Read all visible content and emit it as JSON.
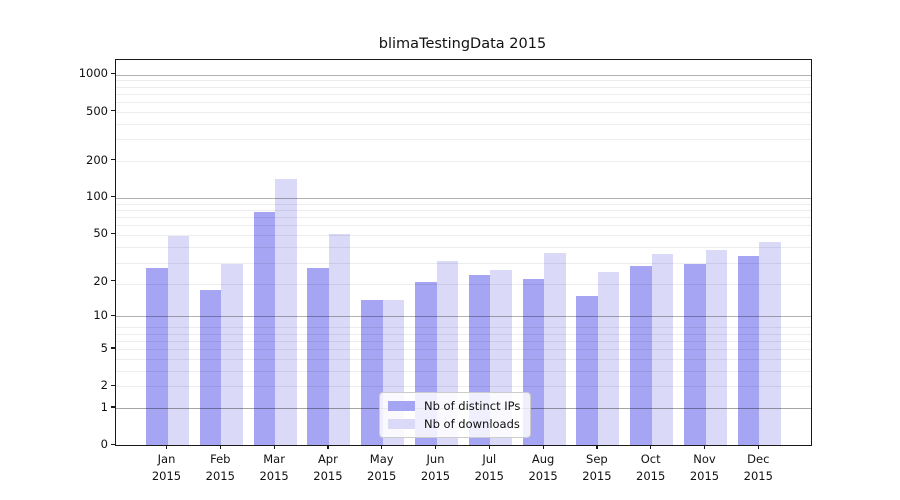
{
  "chart_data": {
    "type": "bar",
    "title": "blimaTestingData 2015",
    "categories": [
      "Jan 2015",
      "Feb 2015",
      "Mar 2015",
      "Apr 2015",
      "May 2015",
      "Jun 2015",
      "Jul 2015",
      "Aug 2015",
      "Sep 2015",
      "Oct 2015",
      "Nov 2015",
      "Dec 2015"
    ],
    "series": [
      {
        "name": "Nb of distinct IPs",
        "color": "#a5a5f3",
        "values": [
          26,
          17,
          76,
          26,
          14,
          20,
          23,
          21,
          15,
          27,
          28,
          33
        ]
      },
      {
        "name": "Nb of downloads",
        "color": "#dadaf8",
        "values": [
          48,
          28,
          143,
          50,
          14,
          30,
          25,
          35,
          24,
          34,
          37,
          43
        ]
      }
    ],
    "xlabel": "",
    "ylabel": "",
    "y_scale": "log1p",
    "y_ticks": [
      0,
      1,
      2,
      5,
      10,
      20,
      50,
      100,
      200,
      500,
      1000
    ],
    "y_major_gridlines": [
      1,
      10,
      100,
      1000
    ],
    "ylim": [
      0,
      1310
    ],
    "grid": true,
    "legend_position": "lower center",
    "colors": {
      "axis": "#1a1a1a",
      "major_grid": "#b3b3b3",
      "minor_grid": "#e8e8e8",
      "legend_border": "#cccccc",
      "background": "#ffffff"
    }
  }
}
